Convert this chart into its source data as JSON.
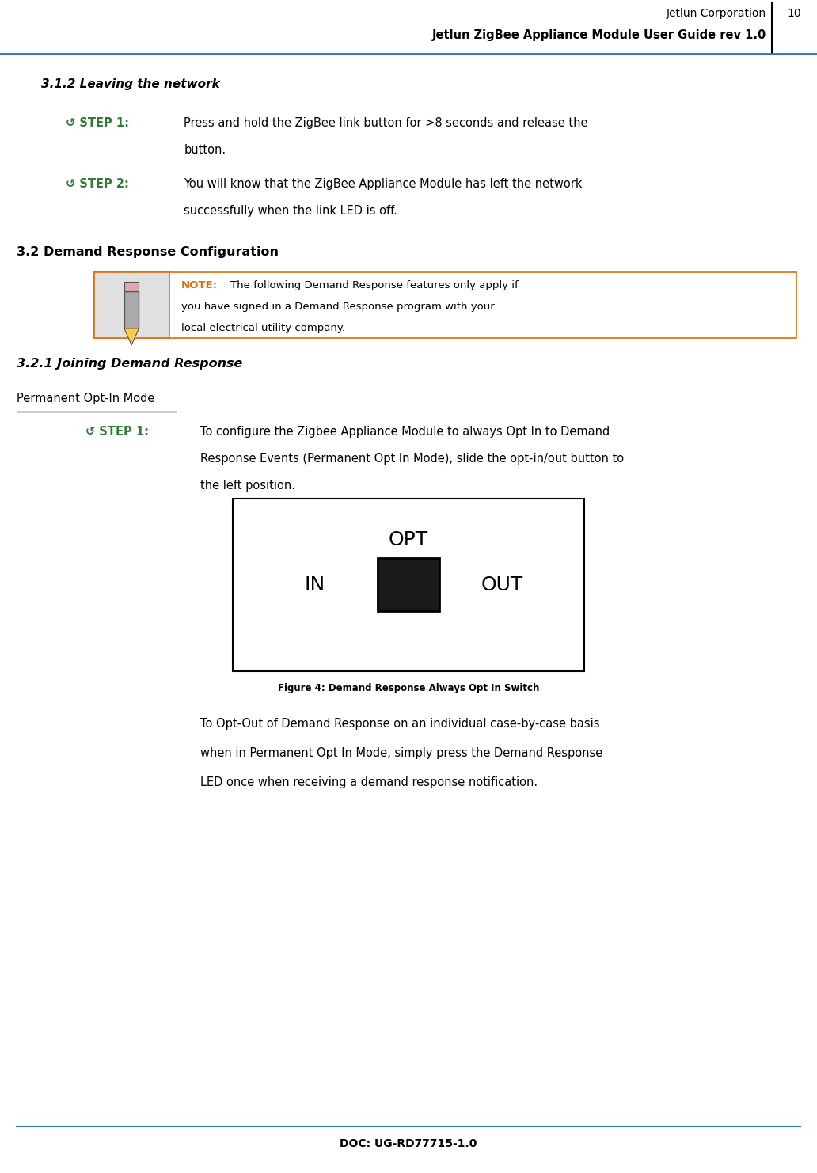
{
  "page_width": 10.32,
  "page_height": 14.82,
  "bg_color": "#ffffff",
  "header_line_color": "#2e75b6",
  "header_text_right": "Jetlun Corporation",
  "header_text_bold": "Jetlun ZigBee Appliance Module User Guide rev 1.0",
  "header_page_num": "10",
  "section_312_title": "3.1.2 Leaving the network",
  "step_color": "#2e7d32",
  "step1_label": "↺ STEP 1:",
  "step1_text_line1": "Press and hold the ZigBee link button for >8 seconds and release the",
  "step1_text_line2": "button.",
  "step2_label": "↺ STEP 2:",
  "step2_text_line1": "You will know that the ZigBee Appliance Module has left the network",
  "step2_text_line2": "successfully when the link LED is off.",
  "section_32_title": "3.2 Demand Response Configuration",
  "note_label": "NOTE:",
  "note_label_color": "#e36c09",
  "note_text_line1": "The following Demand Response features only apply if",
  "note_text_line2": "you have signed in a Demand Response program with your",
  "note_text_line3": "local electrical utility company.",
  "note_border_color": "#e36c09",
  "section_321_title": "3.2.1 Joining Demand Response",
  "perm_opt_title": "Permanent Opt-In Mode",
  "step1b_label": "↺ STEP 1:",
  "step1b_line1": "To configure the Zigbee Appliance Module to always Opt In to Demand",
  "step1b_line2": "Response Events (Permanent Opt In Mode), slide the opt-in/out button to",
  "step1b_line3": "the left position.",
  "fig4_caption": "Figure 4: Demand Response Always Opt In Switch",
  "opt_line1": "To Opt-Out of Demand Response on an individual case-by-case basis",
  "opt_line2": "when in Permanent Opt In Mode, simply press the Demand Response",
  "opt_line3": "LED once when receiving a demand response notification.",
  "footer_text": "DOC: UG-RD77715-1.0",
  "footer_line_color": "#2e75b6"
}
